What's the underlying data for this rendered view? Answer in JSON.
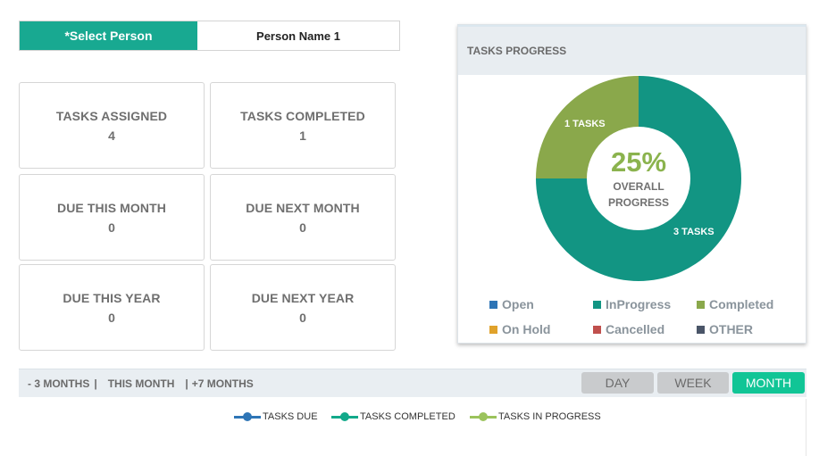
{
  "person": {
    "label": "*Select Person",
    "value": "Person Name 1"
  },
  "stats": [
    {
      "title": "TASKS ASSIGNED",
      "value": "4"
    },
    {
      "title": "TASKS COMPLETED",
      "value": "1"
    },
    {
      "title": "DUE THIS MONTH",
      "value": "0"
    },
    {
      "title": "DUE NEXT MONTH",
      "value": "0"
    },
    {
      "title": "DUE THIS YEAR",
      "value": "0"
    },
    {
      "title": "DUE NEXT YEAR",
      "value": "0"
    }
  ],
  "progress_panel": {
    "title": "TASKS PROGRESS",
    "center_percent": "25%",
    "center_line1": "OVERALL",
    "center_line2": "PROGRESS",
    "legend": [
      {
        "label": "Open",
        "color": "#2e75b6"
      },
      {
        "label": "InProgress",
        "color": "#129583"
      },
      {
        "label": "Completed",
        "color": "#8aa84b"
      },
      {
        "label": "On Hold",
        "color": "#e0a22b"
      },
      {
        "label": "Cancelled",
        "color": "#c0504d"
      },
      {
        "label": "OTHER",
        "color": "#4a5568"
      }
    ]
  },
  "chart_data": {
    "type": "pie",
    "categories": [
      "InProgress",
      "Completed"
    ],
    "values": [
      3,
      1
    ],
    "data_labels": [
      "3 TASKS",
      "1 TASKS"
    ],
    "colors": [
      "#129583",
      "#8aa84b"
    ],
    "legend_position": "bottom",
    "title": "TASKS PROGRESS"
  },
  "timeline": {
    "range_prev": "- 3 MONTHS",
    "range_current": "THIS MONTH",
    "range_next": "+7 MONTHS",
    "sep": "|",
    "periods": [
      "DAY",
      "WEEK",
      "MONTH"
    ],
    "active_period": "MONTH"
  },
  "series_legend": [
    {
      "label": "TASKS DUE",
      "color": "#2e75b6"
    },
    {
      "label": "TASKS COMPLETED",
      "color": "#12a98a"
    },
    {
      "label": "TASKS IN PROGRESS",
      "color": "#9bc35c"
    }
  ]
}
